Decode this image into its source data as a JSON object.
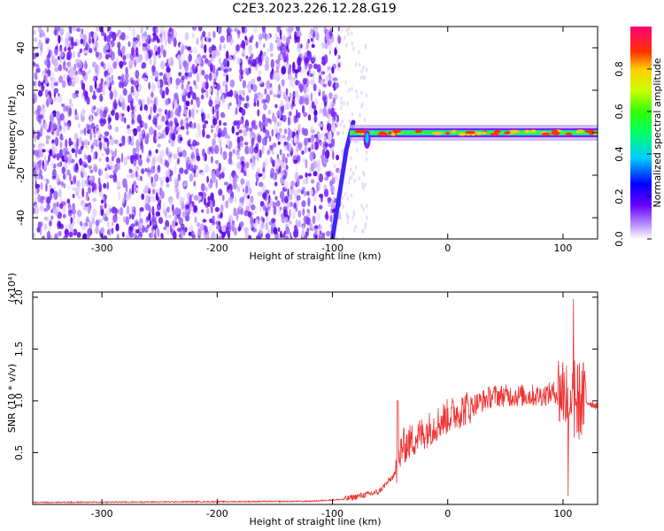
{
  "title": "C2E3.2023.226.12.28.G19",
  "chart_data": [
    {
      "type": "heatmap",
      "xlabel": "Height of straight line (km)",
      "ylabel": "Frequency (Hz)",
      "xlim": [
        -360,
        130
      ],
      "ylim": [
        -50,
        50
      ],
      "x_ticks": [
        -300,
        -200,
        -100,
        0,
        100
      ],
      "y_ticks": [
        -40,
        -20,
        0,
        20,
        40
      ],
      "colorbar": {
        "label": "Normalized spectral amplitude",
        "range": [
          0,
          1
        ],
        "ticks": [
          "0.0",
          "0.2",
          "0.4",
          "0.6",
          "0.8"
        ],
        "tick_values": [
          0.0,
          0.2,
          0.4,
          0.6,
          0.8
        ],
        "colormap": "rainbow (white-violet-blue-cyan-green-yellow-red-magenta)"
      },
      "features": {
        "noise_region_x": [
          -360,
          -100
        ],
        "transition_line": {
          "x": [
            -100,
            -88,
            -82
          ],
          "y": [
            -50,
            -8,
            5
          ]
        },
        "signal_band_y": 0,
        "signal_band_x": [
          -85,
          130
        ]
      },
      "grid": false
    },
    {
      "type": "line",
      "xlabel": "Height of straight line (km)",
      "ylabel": "SNR (10 * v/v)",
      "scale_note": "(x10⁴)",
      "xlim": [
        -360,
        130
      ],
      "ylim": [
        0,
        2.05
      ],
      "x_ticks": [
        -300,
        -200,
        -100,
        0,
        100
      ],
      "y_ticks": [
        0.5,
        1.0,
        1.5,
        2.0
      ],
      "y_tick_labels": [
        "0.5",
        "1.0",
        "1.5",
        "2.0"
      ],
      "series": [
        {
          "color": "#ee3333",
          "envelope_x": [
            -360,
            -120,
            -90,
            -60,
            -45,
            -40,
            -20,
            0,
            20,
            40,
            60,
            80,
            100,
            110,
            118,
            130
          ],
          "envelope_y": [
            0.02,
            0.03,
            0.05,
            0.12,
            0.3,
            0.55,
            0.7,
            0.85,
            0.95,
            1.05,
            1.05,
            1.05,
            1.1,
            1.0,
            1.0,
            0.95
          ]
        }
      ],
      "grid": false
    }
  ]
}
